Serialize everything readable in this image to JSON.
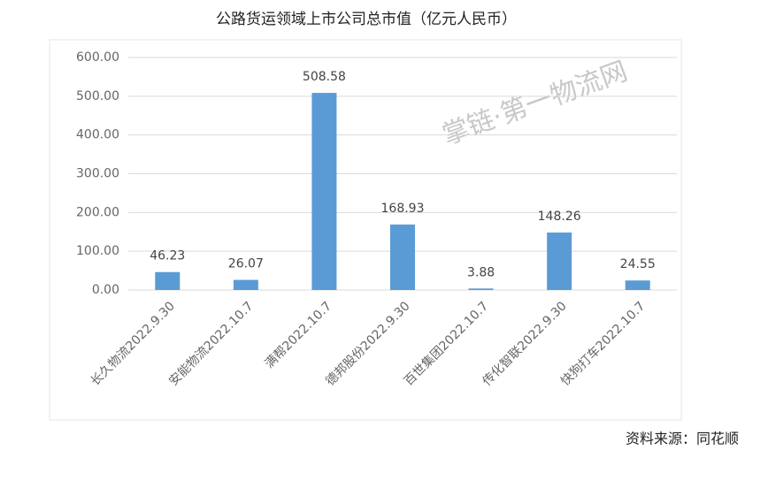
{
  "chart_data": {
    "type": "bar",
    "title": "公路货运领域上市公司总市值（亿元人民币）",
    "categories": [
      "长久物流2022.9.30",
      "安能物流2022.10.7",
      "满帮2022.10.7",
      "德邦股份2022.9.30",
      "百世集团2022.10.7",
      "传化智联2022.9.30",
      "快狗打车2022.10.7"
    ],
    "values": [
      46.23,
      26.07,
      508.58,
      168.93,
      3.88,
      148.26,
      24.55
    ],
    "color": "#5b9bd5",
    "ylim": [
      0,
      600
    ],
    "yticks": [
      {
        "value": 0,
        "label": "0.00"
      },
      {
        "value": 100,
        "label": "100.00"
      },
      {
        "value": 200,
        "label": "200.00"
      },
      {
        "value": 300,
        "label": "300.00"
      },
      {
        "value": 400,
        "label": "400.00"
      },
      {
        "value": 500,
        "label": "500.00"
      },
      {
        "value": 600,
        "label": "600.00"
      }
    ],
    "grid": true,
    "watermark": "掌链·第一物流网",
    "source": "资料来源：同花顺"
  }
}
